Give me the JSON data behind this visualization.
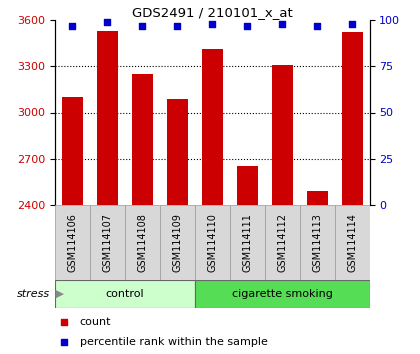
{
  "title": "GDS2491 / 210101_x_at",
  "samples": [
    "GSM114106",
    "GSM114107",
    "GSM114108",
    "GSM114109",
    "GSM114110",
    "GSM114111",
    "GSM114112",
    "GSM114113",
    "GSM114114"
  ],
  "counts": [
    3100,
    3530,
    3250,
    3090,
    3410,
    2650,
    3310,
    2490,
    3520
  ],
  "percentiles": [
    97,
    99,
    97,
    97,
    98,
    97,
    98,
    97,
    98
  ],
  "bar_color": "#cc0000",
  "dot_color": "#0000cc",
  "ylim_left": [
    2400,
    3600
  ],
  "ylim_right": [
    0,
    100
  ],
  "yticks_left": [
    2400,
    2700,
    3000,
    3300,
    3600
  ],
  "yticks_right": [
    0,
    25,
    50,
    75,
    100
  ],
  "grid_lines": [
    2700,
    3000,
    3300
  ],
  "background_color": "#ffffff",
  "bar_width": 0.6,
  "ctrl_color": "#ccffcc",
  "smoke_color": "#55dd55",
  "sample_box_color": "#d8d8d8",
  "n_control": 4,
  "n_smoke": 5,
  "stress_label": "stress",
  "ctrl_label": "control",
  "smoke_label": "cigarette smoking",
  "legend_count": "count",
  "legend_pct": "percentile rank within the sample"
}
